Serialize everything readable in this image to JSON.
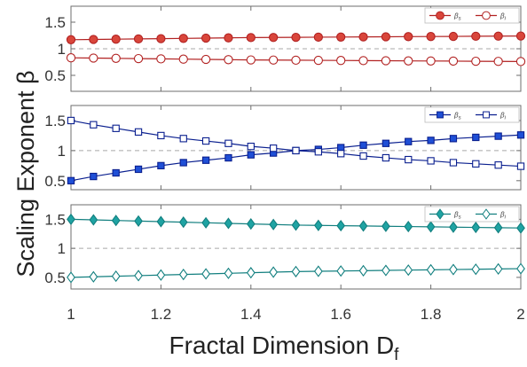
{
  "figure": {
    "xlabel": "Fractal Dimension D",
    "xlabel_sub": "f",
    "ylabel": "Scaling Exponent β",
    "x_ticks": [
      "1",
      "1.2",
      "1.4",
      "1.6",
      "1.8",
      "2"
    ]
  },
  "chart_data": [
    {
      "type": "line",
      "xlim": [
        1,
        2
      ],
      "ylim": [
        0.2,
        1.8
      ],
      "y_ticks": [
        0.5,
        1,
        1.5
      ],
      "y_tick_labels": [
        "0.5",
        "1",
        "1.5"
      ],
      "reference_line": 1,
      "legend_position": "top-right",
      "x": [
        1.0,
        1.05,
        1.1,
        1.15,
        1.2,
        1.25,
        1.3,
        1.35,
        1.4,
        1.45,
        1.5,
        1.55,
        1.6,
        1.65,
        1.7,
        1.75,
        1.8,
        1.85,
        1.9,
        1.95,
        2.0
      ],
      "series": [
        {
          "name": "βs",
          "name_base": "β",
          "name_sub": "s",
          "color": "#b22222",
          "fill": "#d9463b",
          "marker": "circle",
          "filled": true,
          "values": [
            1.17,
            1.175,
            1.18,
            1.185,
            1.19,
            1.195,
            1.2,
            1.205,
            1.21,
            1.212,
            1.215,
            1.218,
            1.22,
            1.223,
            1.225,
            1.228,
            1.23,
            1.232,
            1.235,
            1.237,
            1.24
          ]
        },
        {
          "name": "βi",
          "name_base": "β",
          "name_sub": "i",
          "color": "#b22222",
          "fill": "#ffffff",
          "marker": "circle",
          "filled": false,
          "values": [
            0.83,
            0.825,
            0.82,
            0.815,
            0.81,
            0.805,
            0.8,
            0.795,
            0.79,
            0.788,
            0.785,
            0.782,
            0.78,
            0.777,
            0.775,
            0.772,
            0.77,
            0.768,
            0.765,
            0.763,
            0.76
          ]
        }
      ]
    },
    {
      "type": "line",
      "xlim": [
        1,
        2
      ],
      "ylim": [
        0.35,
        1.75
      ],
      "y_ticks": [
        0.5,
        1,
        1.5
      ],
      "y_tick_labels": [
        "0.5",
        "1",
        "1.5"
      ],
      "reference_line": 1,
      "legend_position": "top-right",
      "x": [
        1.0,
        1.05,
        1.1,
        1.15,
        1.2,
        1.25,
        1.3,
        1.35,
        1.4,
        1.45,
        1.5,
        1.55,
        1.6,
        1.65,
        1.7,
        1.75,
        1.8,
        1.85,
        1.9,
        1.95,
        2.0
      ],
      "series": [
        {
          "name": "βs",
          "name_base": "β",
          "name_sub": "s",
          "color": "#0a1f8f",
          "fill": "#1f4fd6",
          "marker": "square",
          "filled": true,
          "values": [
            0.5,
            0.57,
            0.63,
            0.69,
            0.75,
            0.8,
            0.84,
            0.88,
            0.93,
            0.96,
            1.0,
            1.02,
            1.05,
            1.09,
            1.12,
            1.15,
            1.17,
            1.2,
            1.22,
            1.24,
            1.26
          ]
        },
        {
          "name": "βi",
          "name_base": "β",
          "name_sub": "i",
          "color": "#0a1f8f",
          "fill": "#ffffff",
          "marker": "square",
          "filled": false,
          "values": [
            1.5,
            1.43,
            1.37,
            1.31,
            1.25,
            1.2,
            1.16,
            1.12,
            1.07,
            1.04,
            1.0,
            0.98,
            0.95,
            0.91,
            0.88,
            0.85,
            0.83,
            0.8,
            0.78,
            0.76,
            0.74
          ]
        }
      ]
    },
    {
      "type": "line",
      "xlim": [
        1,
        2
      ],
      "ylim": [
        0.3,
        1.75
      ],
      "y_ticks": [
        0.5,
        1,
        1.5
      ],
      "y_tick_labels": [
        "0.5",
        "1",
        "1.5"
      ],
      "reference_line": 1,
      "legend_position": "top-right",
      "x": [
        1.0,
        1.05,
        1.1,
        1.15,
        1.2,
        1.25,
        1.3,
        1.35,
        1.4,
        1.45,
        1.5,
        1.55,
        1.6,
        1.65,
        1.7,
        1.75,
        1.8,
        1.85,
        1.9,
        1.95,
        2.0
      ],
      "series": [
        {
          "name": "βs",
          "name_base": "β",
          "name_sub": "s",
          "color": "#127f7f",
          "fill": "#1fa3a3",
          "marker": "diamond",
          "filled": true,
          "values": [
            1.5,
            1.49,
            1.48,
            1.47,
            1.46,
            1.45,
            1.44,
            1.43,
            1.42,
            1.41,
            1.4,
            1.395,
            1.39,
            1.385,
            1.38,
            1.375,
            1.37,
            1.365,
            1.36,
            1.355,
            1.35
          ]
        },
        {
          "name": "βi",
          "name_base": "β",
          "name_sub": "i",
          "color": "#127f7f",
          "fill": "#ffffff",
          "marker": "diamond",
          "filled": false,
          "values": [
            0.5,
            0.51,
            0.52,
            0.53,
            0.54,
            0.55,
            0.56,
            0.57,
            0.58,
            0.59,
            0.6,
            0.605,
            0.61,
            0.615,
            0.62,
            0.625,
            0.63,
            0.635,
            0.64,
            0.645,
            0.65
          ]
        }
      ]
    }
  ]
}
